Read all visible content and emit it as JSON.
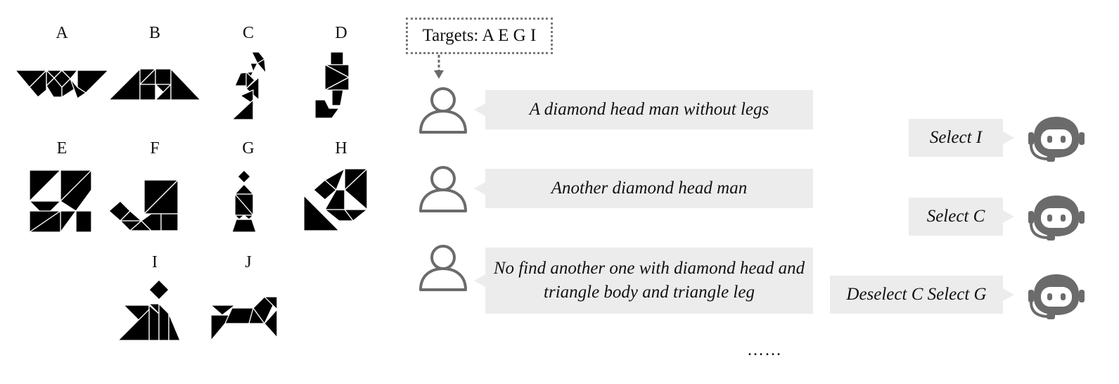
{
  "tangram_labels": [
    "A",
    "B",
    "C",
    "D",
    "E",
    "F",
    "G",
    "H",
    "I",
    "J"
  ],
  "targets_label": "Targets: A E G I",
  "user_messages": [
    "A diamond head man without legs",
    "Another diamond head man",
    "No find another one with diamond head and triangle body and triangle leg"
  ],
  "bot_messages": [
    "Select I",
    "Select C",
    "Deselect C Select G"
  ],
  "ellipsis": "……",
  "icons": [
    "user-icon",
    "robot-headset-icon"
  ],
  "colors": {
    "bubble": "#ececec",
    "icon_gray": "#6b6b6b",
    "shape": "#000000"
  }
}
